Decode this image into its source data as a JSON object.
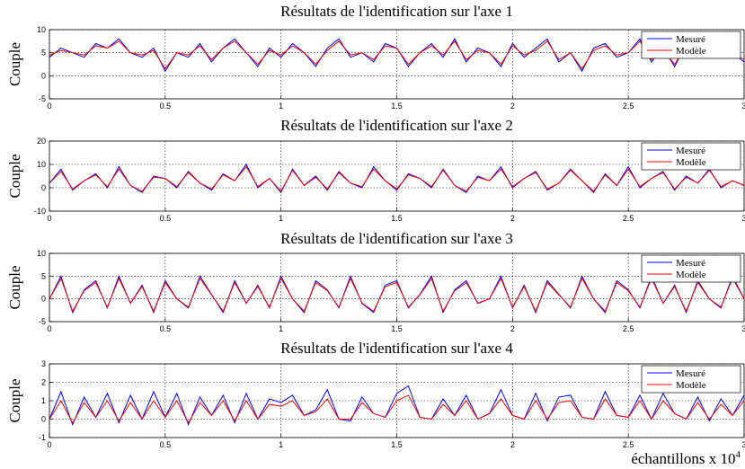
{
  "chart_data": [
    {
      "type": "line",
      "title": "Résultats de l'identification sur l'axe 1",
      "ylabel": "Couple",
      "x": [
        0,
        0.05,
        0.1,
        0.15,
        0.2,
        0.25,
        0.3,
        0.35,
        0.4,
        0.45,
        0.5,
        0.55,
        0.6,
        0.65,
        0.7,
        0.75,
        0.8,
        0.85,
        0.9,
        0.95,
        1,
        1.05,
        1.1,
        1.15,
        1.2,
        1.25,
        1.3,
        1.35,
        1.4,
        1.45,
        1.5,
        1.55,
        1.6,
        1.65,
        1.7,
        1.75,
        1.8,
        1.85,
        1.9,
        1.95,
        2,
        2.05,
        2.1,
        2.15,
        2.2,
        2.25,
        2.3,
        2.35,
        2.4,
        2.45,
        2.5,
        2.55,
        2.6,
        2.65,
        2.7,
        2.75,
        2.8,
        2.85,
        2.9,
        2.95,
        3
      ],
      "series": [
        {
          "name": "Mesuré",
          "color": "#0000ff",
          "values": [
            4,
            6,
            5,
            4,
            7,
            6,
            8,
            5,
            4,
            6,
            1,
            5,
            4,
            7,
            3,
            6,
            8,
            5,
            2,
            6,
            4,
            7,
            5,
            2,
            6,
            8,
            4,
            5,
            3,
            7,
            6,
            2,
            5,
            7,
            4,
            8,
            3,
            6,
            5,
            2,
            7,
            4,
            6,
            8,
            3,
            5,
            1,
            6,
            7,
            4,
            5,
            8,
            3,
            6,
            2,
            7,
            5,
            6,
            4,
            5,
            3
          ]
        },
        {
          "name": "Modèle",
          "color": "#ff0000",
          "values": [
            4.5,
            5.5,
            5,
            4.5,
            6.5,
            6,
            7.5,
            5,
            4.5,
            5.5,
            1.5,
            5,
            4.5,
            6.5,
            3.5,
            6,
            7.5,
            5,
            2.5,
            5.5,
            4.5,
            6.5,
            5,
            2.5,
            5.5,
            7.5,
            4.5,
            5,
            3.5,
            6.5,
            6,
            2.5,
            5,
            6.5,
            4.5,
            7.5,
            3.5,
            5.5,
            5,
            2.5,
            6.5,
            4.5,
            5.5,
            7.5,
            3.5,
            5,
            1.5,
            5.5,
            6.5,
            4.5,
            5,
            7.5,
            3.5,
            5.5,
            2.5,
            6.5,
            5,
            5.5,
            4.5,
            5,
            3.5
          ]
        }
      ],
      "xlim": [
        0,
        3
      ],
      "xticks": [
        0,
        0.5,
        1,
        1.5,
        2,
        2.5,
        3
      ],
      "ylim": [
        -5,
        10
      ],
      "yticks": [
        -5,
        0,
        5,
        10
      ],
      "grid": true,
      "legend": "upper right"
    },
    {
      "type": "line",
      "title": "Résultats de l'identification sur l'axe 2",
      "ylabel": "Couple",
      "x": [
        0,
        0.05,
        0.1,
        0.15,
        0.2,
        0.25,
        0.3,
        0.35,
        0.4,
        0.45,
        0.5,
        0.55,
        0.6,
        0.65,
        0.7,
        0.75,
        0.8,
        0.85,
        0.9,
        0.95,
        1,
        1.05,
        1.1,
        1.15,
        1.2,
        1.25,
        1.3,
        1.35,
        1.4,
        1.45,
        1.5,
        1.55,
        1.6,
        1.65,
        1.7,
        1.75,
        1.8,
        1.85,
        1.9,
        1.95,
        2,
        2.05,
        2.1,
        2.15,
        2.2,
        2.25,
        2.3,
        2.35,
        2.4,
        2.45,
        2.5,
        2.55,
        2.6,
        2.65,
        2.7,
        2.75,
        2.8,
        2.85,
        2.9,
        2.95,
        3
      ],
      "series": [
        {
          "name": "Mesuré",
          "color": "#0000ff",
          "values": [
            2,
            8,
            -1,
            3,
            6,
            0,
            9,
            1,
            -2,
            5,
            4,
            0,
            7,
            2,
            -1,
            6,
            3,
            10,
            0,
            4,
            -2,
            8,
            1,
            5,
            -1,
            7,
            2,
            0,
            9,
            3,
            -1,
            6,
            4,
            0,
            8,
            1,
            -2,
            5,
            3,
            9,
            0,
            4,
            7,
            -1,
            2,
            8,
            3,
            -2,
            6,
            1,
            9,
            0,
            4,
            7,
            -1,
            5,
            2,
            8,
            0,
            3,
            1
          ]
        },
        {
          "name": "Modèle",
          "color": "#ff0000",
          "values": [
            2,
            7,
            -0.5,
            3,
            5.5,
            0.5,
            8,
            1,
            -1.5,
            4.5,
            4,
            0.5,
            6.5,
            2,
            -0.5,
            5.5,
            3,
            9,
            0.5,
            4,
            -1.5,
            7.5,
            1,
            4.5,
            -0.5,
            6.5,
            2,
            0.5,
            8,
            3,
            -0.5,
            5.5,
            4,
            0.5,
            7.5,
            1,
            -1.5,
            4.5,
            3,
            8,
            0.5,
            4,
            6.5,
            -0.5,
            2,
            7.5,
            3,
            -1.5,
            5.5,
            1,
            8,
            0.5,
            4,
            6.5,
            -0.5,
            4.5,
            2,
            7.5,
            0.5,
            3,
            1
          ]
        }
      ],
      "xlim": [
        0,
        3
      ],
      "xticks": [
        0,
        0.5,
        1,
        1.5,
        2,
        2.5,
        3
      ],
      "ylim": [
        -10,
        20
      ],
      "yticks": [
        -10,
        0,
        10,
        20
      ],
      "grid": true,
      "legend": "upper right"
    },
    {
      "type": "line",
      "title": "Résultats de l'identification sur l'axe 3",
      "ylabel": "Couple",
      "x": [
        0,
        0.05,
        0.1,
        0.15,
        0.2,
        0.25,
        0.3,
        0.35,
        0.4,
        0.45,
        0.5,
        0.55,
        0.6,
        0.65,
        0.7,
        0.75,
        0.8,
        0.85,
        0.9,
        0.95,
        1,
        1.05,
        1.1,
        1.15,
        1.2,
        1.25,
        1.3,
        1.35,
        1.4,
        1.45,
        1.5,
        1.55,
        1.6,
        1.65,
        1.7,
        1.75,
        1.8,
        1.85,
        1.9,
        1.95,
        2,
        2.05,
        2.1,
        2.15,
        2.2,
        2.25,
        2.3,
        2.35,
        2.4,
        2.45,
        2.5,
        2.55,
        2.6,
        2.65,
        2.7,
        2.75,
        2.8,
        2.85,
        2.9,
        2.95,
        3
      ],
      "series": [
        {
          "name": "Mesuré",
          "color": "#0000ff",
          "values": [
            0,
            5,
            -3,
            2,
            4,
            -2,
            5,
            -1,
            3,
            -3,
            4,
            0,
            -2,
            5,
            1,
            -3,
            4,
            -1,
            3,
            -2,
            5,
            0,
            -3,
            4,
            2,
            -2,
            5,
            -1,
            -3,
            3,
            4,
            -2,
            1,
            5,
            -3,
            2,
            4,
            -1,
            0,
            5,
            -2,
            3,
            -3,
            4,
            1,
            -2,
            5,
            0,
            -3,
            4,
            2,
            -2,
            5,
            -1,
            3,
            -3,
            4,
            0,
            -2,
            5,
            0
          ]
        },
        {
          "name": "Modèle",
          "color": "#ff0000",
          "values": [
            0,
            4.5,
            -2.7,
            1.8,
            3.6,
            -1.8,
            4.5,
            -0.9,
            2.7,
            -2.7,
            3.6,
            0,
            -1.8,
            4.5,
            0.9,
            -2.7,
            3.6,
            -0.9,
            2.7,
            -1.8,
            4.5,
            0,
            -2.7,
            3.6,
            1.8,
            -1.8,
            4.5,
            -0.9,
            -2.7,
            2.7,
            3.6,
            -1.8,
            0.9,
            4.5,
            -2.7,
            1.8,
            3.6,
            -0.9,
            0,
            4.5,
            -1.8,
            2.7,
            -2.7,
            3.6,
            0.9,
            -1.8,
            4.5,
            0,
            -2.7,
            3.6,
            1.8,
            -1.8,
            4.5,
            -0.9,
            2.7,
            -2.7,
            3.6,
            0,
            -1.8,
            4.5,
            0
          ]
        }
      ],
      "xlim": [
        0,
        3
      ],
      "xticks": [
        0,
        0.5,
        1,
        1.5,
        2,
        2.5,
        3
      ],
      "ylim": [
        -5,
        10
      ],
      "yticks": [
        -5,
        0,
        5,
        10
      ],
      "grid": true,
      "legend": "upper right"
    },
    {
      "type": "line",
      "title": "Résultats de l'identification sur l'axe 4",
      "ylabel": "Couple",
      "xlabel": "échantillons x 10",
      "xlabel_exponent": "4",
      "x": [
        0,
        0.05,
        0.1,
        0.15,
        0.2,
        0.25,
        0.3,
        0.35,
        0.4,
        0.45,
        0.5,
        0.55,
        0.6,
        0.65,
        0.7,
        0.75,
        0.8,
        0.85,
        0.9,
        0.95,
        1,
        1.05,
        1.1,
        1.15,
        1.2,
        1.25,
        1.3,
        1.35,
        1.4,
        1.45,
        1.5,
        1.55,
        1.6,
        1.65,
        1.7,
        1.75,
        1.8,
        1.85,
        1.9,
        1.95,
        2,
        2.05,
        2.1,
        2.15,
        2.2,
        2.25,
        2.3,
        2.35,
        2.4,
        2.45,
        2.5,
        2.55,
        2.6,
        2.65,
        2.7,
        2.75,
        2.8,
        2.85,
        2.9,
        2.95,
        3
      ],
      "series": [
        {
          "name": "Mesuré",
          "color": "#0000ff",
          "values": [
            0,
            1.5,
            -0.3,
            1.2,
            0.1,
            1.4,
            -0.2,
            1.3,
            0,
            1.5,
            0.1,
            1.4,
            -0.3,
            1.2,
            0.2,
            1.3,
            -0.2,
            1.4,
            0,
            1.1,
            0.9,
            1.3,
            0.2,
            0.5,
            1.6,
            0,
            -0.1,
            1.2,
            0.3,
            0.1,
            1.4,
            1.8,
            0.1,
            0,
            1.1,
            0.2,
            1.3,
            0,
            0.3,
            1.6,
            0.2,
            0,
            1.4,
            -0.1,
            1.2,
            1.3,
            0.1,
            0,
            1.5,
            0.2,
            0.1,
            1.3,
            0,
            1.4,
            0.3,
            0,
            1.2,
            -0.1,
            1.1,
            0.2,
            1.3
          ]
        },
        {
          "name": "Modèle",
          "color": "#ff0000",
          "values": [
            0,
            1,
            -0.2,
            0.9,
            0.1,
            1,
            -0.1,
            0.9,
            0,
            1,
            0.1,
            1,
            -0.2,
            0.9,
            0.2,
            1,
            -0.1,
            1,
            0,
            0.8,
            0.7,
            1,
            0.2,
            0.4,
            1.1,
            0,
            0,
            0.9,
            0.3,
            0.1,
            1,
            1.3,
            0.1,
            0,
            0.8,
            0.2,
            1,
            0,
            0.3,
            1.1,
            0.2,
            0,
            1,
            0,
            0.9,
            1,
            0.1,
            0,
            1.1,
            0.2,
            0.1,
            1,
            0,
            1,
            0.3,
            0,
            0.9,
            0,
            0.8,
            0.2,
            1
          ]
        }
      ],
      "xlim": [
        0,
        3
      ],
      "xticks": [
        0,
        0.5,
        1,
        1.5,
        2,
        2.5,
        3
      ],
      "ylim": [
        -1,
        3
      ],
      "yticks": [
        -1,
        0,
        1,
        2,
        3
      ],
      "grid": true,
      "legend": "upper right"
    }
  ]
}
